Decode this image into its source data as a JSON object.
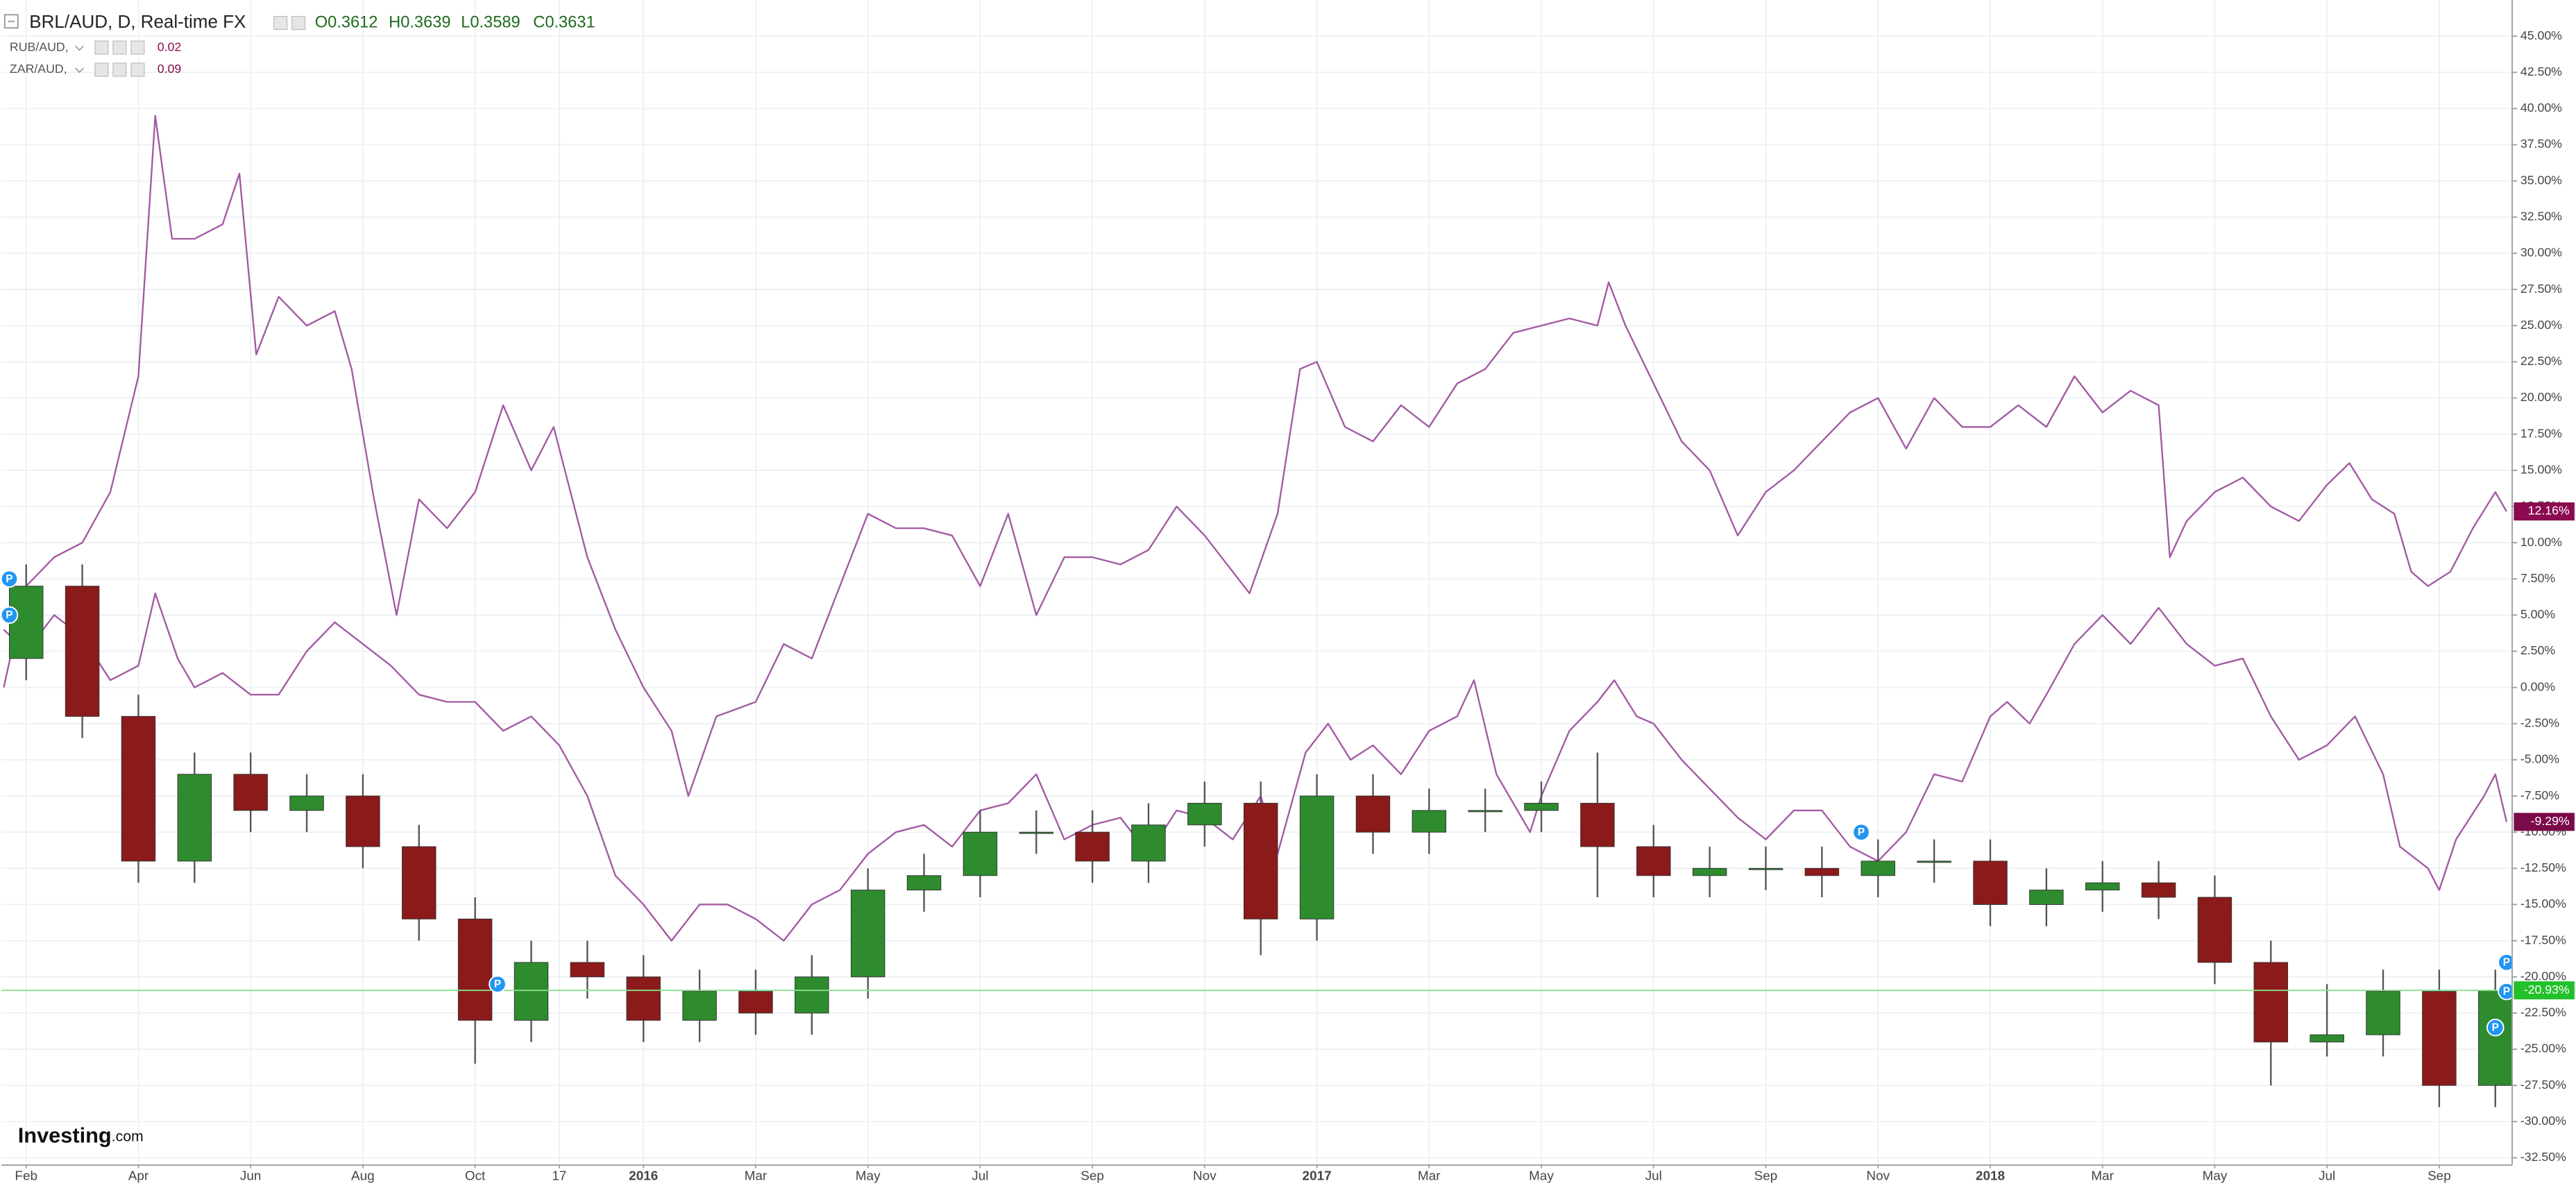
{
  "chart_data": {
    "type": "candlestick",
    "title": "BRL/AUD, D, Real-time FX",
    "ohlc_labels": [
      "O0.3612",
      "H0.3639",
      "L0.3589",
      "C0.3631"
    ],
    "watermark": {
      "brand": "Investing",
      "suffix": ".com"
    },
    "grid": true,
    "xlim": [
      -0.44,
      44.3
    ],
    "xticks": [
      {
        "value": 0,
        "label": "Feb"
      },
      {
        "value": 2,
        "label": "Apr"
      },
      {
        "value": 4,
        "label": "Jun"
      },
      {
        "value": 6,
        "label": "Aug"
      },
      {
        "value": 8,
        "label": "Oct"
      },
      {
        "value": 9.5,
        "label": "17"
      },
      {
        "value": 11,
        "label": "2016"
      },
      {
        "value": 13,
        "label": "Mar"
      },
      {
        "value": 15,
        "label": "May"
      },
      {
        "value": 17,
        "label": "Jul"
      },
      {
        "value": 19,
        "label": "Sep"
      },
      {
        "value": 21,
        "label": "Nov"
      },
      {
        "value": 23,
        "label": "2017"
      },
      {
        "value": 25,
        "label": "Mar"
      },
      {
        "value": 27,
        "label": "May"
      },
      {
        "value": 29,
        "label": "Jul"
      },
      {
        "value": 31,
        "label": "Sep"
      },
      {
        "value": 33,
        "label": "Nov"
      },
      {
        "value": 35,
        "label": "2018"
      },
      {
        "value": 37,
        "label": "Mar"
      },
      {
        "value": 39,
        "label": "May"
      },
      {
        "value": 41,
        "label": "Jul"
      },
      {
        "value": 43,
        "label": "Sep"
      }
    ],
    "ylim": [
      -33,
      47.5
    ],
    "yticks": [
      {
        "value": 45,
        "label": "45.00%"
      },
      {
        "value": 42.5,
        "label": "42.50%"
      },
      {
        "value": 40,
        "label": "40.00%"
      },
      {
        "value": 37.5,
        "label": "37.50%"
      },
      {
        "value": 35,
        "label": "35.00%"
      },
      {
        "value": 32.5,
        "label": "32.50%"
      },
      {
        "value": 30,
        "label": "30.00%"
      },
      {
        "value": 27.5,
        "label": "27.50%"
      },
      {
        "value": 25,
        "label": "25.00%"
      },
      {
        "value": 22.5,
        "label": "22.50%"
      },
      {
        "value": 20,
        "label": "20.00%"
      },
      {
        "value": 17.5,
        "label": "17.50%"
      },
      {
        "value": 15,
        "label": "15.00%"
      },
      {
        "value": 12.5,
        "label": "12.50%"
      },
      {
        "value": 10,
        "label": "10.00%"
      },
      {
        "value": 7.5,
        "label": "7.50%"
      },
      {
        "value": 5,
        "label": "5.00%"
      },
      {
        "value": 2.5,
        "label": "2.50%"
      },
      {
        "value": 0,
        "label": "0.00%"
      },
      {
        "value": -2.5,
        "label": "-2.50%"
      },
      {
        "value": -5,
        "label": "-5.00%"
      },
      {
        "value": -7.5,
        "label": "-7.50%"
      },
      {
        "value": -10,
        "label": "-10.00%"
      },
      {
        "value": -12.5,
        "label": "-12.50%"
      },
      {
        "value": -15,
        "label": "-15.00%"
      },
      {
        "value": -17.5,
        "label": "-17.50%"
      },
      {
        "value": -20,
        "label": "-20.00%"
      },
      {
        "value": -22.5,
        "label": "-22.50%"
      },
      {
        "value": -25,
        "label": "-25.00%"
      },
      {
        "value": -27.5,
        "label": "-27.50%"
      },
      {
        "value": -30,
        "label": "-30.00%"
      },
      {
        "value": -32.5,
        "label": "-32.50%"
      }
    ],
    "candles": {
      "up_color": "#2e8b2e",
      "down_color": "#8b1a1a",
      "wick_color": "#555555",
      "last_color": "#22c02a",
      "last_label": "-20.93%",
      "x": [
        0,
        1,
        2,
        3,
        4,
        5,
        6,
        7,
        8,
        9,
        10,
        11,
        12,
        13,
        14,
        15,
        16,
        17,
        18,
        19,
        20,
        21,
        22,
        23,
        24,
        25,
        26,
        27,
        28,
        29,
        30,
        31,
        32,
        33,
        34,
        35,
        36,
        37,
        38,
        39,
        40,
        41,
        42,
        43,
        44
      ],
      "open": [
        2,
        7,
        -2,
        -12,
        -6,
        -8.5,
        -7.5,
        -11,
        -16,
        -23,
        -19,
        -20,
        -23,
        -21,
        -22.5,
        -20,
        -14,
        -13,
        -10,
        -10,
        -12,
        -9.5,
        -8,
        -16,
        -7.5,
        -10,
        -8.5,
        -8.5,
        -8,
        -11,
        -13,
        -12.5,
        -12.5,
        -13,
        -12,
        -12,
        -15,
        -14,
        -13.5,
        -14.5,
        -19,
        -24.5,
        -24,
        -21,
        -27.5
      ],
      "high": [
        8.5,
        8.5,
        -0.5,
        -4.5,
        -4.5,
        -6,
        -6,
        -9.5,
        -14.5,
        -17.5,
        -17.5,
        -18.5,
        -19.5,
        -19.5,
        -18.5,
        -12.5,
        -11.5,
        -8.5,
        -8.5,
        -8.5,
        -8,
        -6.5,
        -6.5,
        -6,
        -6,
        -7,
        -7,
        -6.5,
        -4.5,
        -9.5,
        -11,
        -11,
        -11,
        -10.5,
        -10.5,
        -10.5,
        -12.5,
        -12,
        -12,
        -13,
        -17.5,
        -20.5,
        -19.5,
        -19.5,
        -19.5
      ],
      "low": [
        0.5,
        -3.5,
        -13.5,
        -13.5,
        -10,
        -10,
        -12.5,
        -17.5,
        -26,
        -24.5,
        -21.5,
        -24.5,
        -24.5,
        -24,
        -24,
        -21.5,
        -15.5,
        -14.5,
        -11.5,
        -13.5,
        -13.5,
        -11,
        -18.5,
        -17.5,
        -11.5,
        -11.5,
        -10,
        -10,
        -14.5,
        -14.5,
        -14.5,
        -14,
        -14.5,
        -14.5,
        -13.5,
        -16.5,
        -16.5,
        -15.5,
        -16,
        -20.5,
        -27.5,
        -25.5,
        -25.5,
        -29,
        -29
      ],
      "close": [
        7,
        -2,
        -12,
        -6,
        -8.5,
        -7.5,
        -11,
        -16,
        -23,
        -19,
        -20,
        -23,
        -21,
        -22.5,
        -20,
        -14,
        -13,
        -10,
        -10,
        -12,
        -9.5,
        -8,
        -16,
        -7.5,
        -10,
        -8.5,
        -8.5,
        -8,
        -11,
        -13,
        -12.5,
        -12.5,
        -13,
        -12,
        -12,
        -15,
        -14,
        -13.5,
        -14.5,
        -19,
        -24.5,
        -24,
        -21,
        -27.5,
        -20.93
      ]
    },
    "series": [
      {
        "name": "RUB/AUD,",
        "value_text": "0.02",
        "color": "#a25aa3",
        "label_color": "#8b0a50",
        "last_label": "12.16%",
        "x": [
          -0.4,
          0,
          0.5,
          1,
          1.5,
          2,
          2.3,
          2.6,
          3,
          3.5,
          3.8,
          4.1,
          4.5,
          5,
          5.5,
          5.8,
          6.2,
          6.6,
          7,
          7.5,
          8,
          8.5,
          9,
          9.4,
          10,
          10.5,
          11,
          11.5,
          11.8,
          12.3,
          13,
          13.5,
          14,
          14.5,
          15,
          15.5,
          16,
          16.5,
          17,
          17.5,
          18,
          18.5,
          19,
          19.5,
          20,
          20.5,
          21,
          21.5,
          21.8,
          22.3,
          22.7,
          23,
          23.5,
          24,
          24.5,
          25,
          25.5,
          26,
          26.5,
          27,
          27.5,
          28,
          28.2,
          28.5,
          29,
          29.5,
          30,
          30.5,
          31,
          31.5,
          32,
          32.5,
          33,
          33.5,
          34,
          34.5,
          35,
          35.5,
          36,
          36.5,
          37,
          37.5,
          38,
          38.2,
          38.5,
          39,
          39.5,
          40,
          40.5,
          41,
          41.4,
          41.8,
          42.2,
          42.5,
          42.8,
          43.2,
          43.6,
          44,
          44.2
        ],
        "values": [
          0,
          7,
          9,
          10,
          13.5,
          21.5,
          39.5,
          31,
          31,
          32,
          35.5,
          23,
          27,
          25,
          26,
          22,
          13,
          5,
          13,
          11,
          13.5,
          19.5,
          15,
          18,
          9,
          4,
          0,
          -3,
          -7.5,
          -2,
          -1,
          3,
          2,
          7,
          12,
          11,
          11,
          10.5,
          7,
          12,
          5,
          9,
          9,
          8.5,
          9.5,
          12.5,
          10.5,
          8,
          6.5,
          12,
          22,
          22.5,
          18,
          17,
          19.5,
          18,
          21,
          22,
          24.5,
          25,
          25.5,
          25,
          28,
          25,
          21,
          17,
          15,
          10.5,
          13.5,
          15,
          17,
          19,
          20,
          16.5,
          20,
          18,
          18,
          19.5,
          18,
          21.5,
          19,
          20.5,
          19.5,
          9,
          11.5,
          13.5,
          14.5,
          12.5,
          11.5,
          14,
          15.5,
          13,
          12,
          8,
          7,
          8,
          11,
          13.5,
          12.16
        ]
      },
      {
        "name": "ZAR/AUD,",
        "value_text": "0.09",
        "color": "#a25aa3",
        "label_color": "#7a0a48",
        "last_label": "-9.29%",
        "x": [
          -0.4,
          0,
          0.5,
          1,
          1.5,
          2,
          2.3,
          2.7,
          3,
          3.5,
          4,
          4.5,
          5,
          5.5,
          6,
          6.5,
          7,
          7.5,
          8,
          8.5,
          9,
          9.5,
          10,
          10.5,
          11,
          11.5,
          12,
          12.5,
          13,
          13.5,
          14,
          14.5,
          15,
          15.5,
          16,
          16.5,
          17,
          17.5,
          18,
          18.5,
          19,
          19.5,
          20,
          20.5,
          21,
          21.5,
          22,
          22.3,
          22.8,
          23.2,
          23.6,
          24,
          24.5,
          25,
          25.5,
          25.8,
          26.2,
          26.8,
          27,
          27.5,
          28,
          28.3,
          28.7,
          29,
          29.5,
          30,
          30.5,
          31,
          31.5,
          32,
          32.5,
          33,
          33.5,
          34,
          34.5,
          35,
          35.3,
          35.7,
          36,
          36.5,
          37,
          37.5,
          38,
          38.5,
          39,
          39.5,
          40,
          40.5,
          41,
          41.5,
          42,
          42.3,
          42.8,
          43,
          43.3,
          43.8,
          44,
          44.2
        ],
        "values": [
          4,
          2.5,
          5,
          3.5,
          0.5,
          1.5,
          6.5,
          2,
          0,
          1,
          -0.5,
          -0.5,
          2.5,
          4.5,
          3,
          1.5,
          -0.5,
          -1,
          -1,
          -3,
          -2,
          -4,
          -7.5,
          -13,
          -15,
          -17.5,
          -15,
          -15,
          -16,
          -17.5,
          -15,
          -14,
          -11.5,
          -10,
          -9.5,
          -11,
          -8.5,
          -8,
          -6,
          -10.5,
          -9.5,
          -9,
          -11.5,
          -8.5,
          -9,
          -10.5,
          -7.5,
          -11.5,
          -4.5,
          -2.5,
          -5,
          -4,
          -6,
          -3,
          -2,
          0.5,
          -6,
          -10,
          -7.5,
          -3,
          -1,
          0.5,
          -2,
          -2.5,
          -5,
          -7,
          -9,
          -10.5,
          -8.5,
          -8.5,
          -11,
          -12,
          -10,
          -6,
          -6.5,
          -2,
          -1,
          -2.5,
          -0.5,
          3,
          5,
          3,
          5.5,
          3,
          1.5,
          2,
          -2,
          -5,
          -4,
          -2,
          -6,
          -11,
          -12.5,
          -14,
          -10.5,
          -7.5,
          -6,
          -9.29
        ]
      }
    ],
    "events": [
      {
        "x": -0.3,
        "y": 7.5,
        "label": "P"
      },
      {
        "x": -0.3,
        "y": 5,
        "label": "P"
      },
      {
        "x": 8.4,
        "y": -20.5,
        "label": "P"
      },
      {
        "x": 32.7,
        "y": -10,
        "label": "P"
      },
      {
        "x": 44.2,
        "y": -19,
        "label": "P"
      },
      {
        "x": 44.2,
        "y": -21,
        "label": "P"
      },
      {
        "x": 44.0,
        "y": -23.5,
        "label": "P"
      }
    ]
  }
}
